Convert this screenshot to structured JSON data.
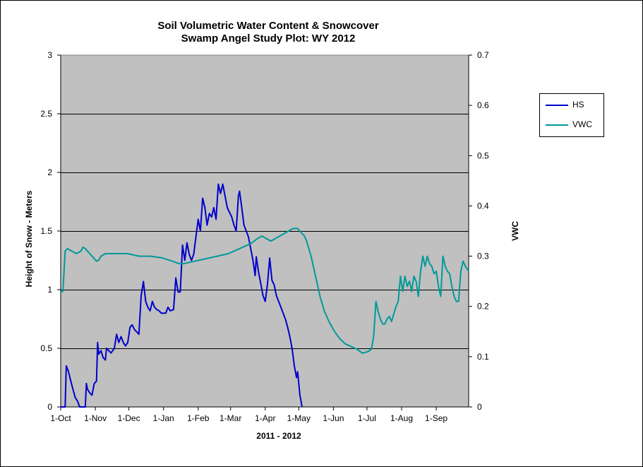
{
  "chart_data": {
    "type": "line",
    "title": "Soil Volumetric Water Content & Snowcover",
    "subtitle": "Swamp Angel Study Plot: WY 2012",
    "xlabel": "2011  - 2012",
    "ylabel": "Height of Snow - Meters",
    "y2label": "VWC",
    "x_tick_labels": [
      "1-Oct",
      "1-Nov",
      "1-Dec",
      "1-Jan",
      "1-Feb",
      "1-Mar",
      "1-Apr",
      "1-May",
      "1-Jun",
      "1-Jul",
      "1-Aug",
      "1-Sep"
    ],
    "x_tick_days": [
      0,
      31,
      61,
      92,
      123,
      152,
      183,
      213,
      244,
      274,
      305,
      336
    ],
    "xlim": [
      0,
      365
    ],
    "ylim": [
      0,
      3
    ],
    "y_ticks": [
      0,
      0.5,
      1,
      1.5,
      2,
      2.5,
      3
    ],
    "y_tick_labels": [
      "0",
      "0.5",
      "1",
      "1.5",
      "2",
      "2.5",
      "3"
    ],
    "y2lim": [
      0,
      0.7
    ],
    "y2_ticks": [
      0,
      0.1,
      0.2,
      0.3,
      0.4,
      0.5,
      0.6,
      0.7
    ],
    "y2_tick_labels": [
      "0",
      "0.1",
      "0.2",
      "0.3",
      "0.4",
      "0.5",
      "0.6",
      "0.7"
    ],
    "grid": "horizontal",
    "legend_position": "right",
    "plot_background": "#c0c0c0",
    "series": [
      {
        "name": "HS",
        "axis": "left",
        "color": "#0000cc",
        "points": [
          [
            0,
            0
          ],
          [
            4,
            0
          ],
          [
            5,
            0.35
          ],
          [
            7,
            0.3
          ],
          [
            9,
            0.22
          ],
          [
            11,
            0.15
          ],
          [
            13,
            0.08
          ],
          [
            15,
            0.05
          ],
          [
            17,
            0
          ],
          [
            22,
            0
          ],
          [
            23,
            0.2
          ],
          [
            24,
            0.15
          ],
          [
            26,
            0.12
          ],
          [
            28,
            0.1
          ],
          [
            30,
            0.2
          ],
          [
            32,
            0.22
          ],
          [
            33,
            0.55
          ],
          [
            34,
            0.45
          ],
          [
            36,
            0.48
          ],
          [
            38,
            0.42
          ],
          [
            40,
            0.4
          ],
          [
            41,
            0.5
          ],
          [
            43,
            0.48
          ],
          [
            45,
            0.46
          ],
          [
            48,
            0.5
          ],
          [
            50,
            0.62
          ],
          [
            52,
            0.55
          ],
          [
            54,
            0.6
          ],
          [
            56,
            0.55
          ],
          [
            58,
            0.52
          ],
          [
            60,
            0.55
          ],
          [
            62,
            0.68
          ],
          [
            64,
            0.7
          ],
          [
            66,
            0.66
          ],
          [
            68,
            0.64
          ],
          [
            70,
            0.62
          ],
          [
            72,
            0.95
          ],
          [
            74,
            1.07
          ],
          [
            76,
            0.9
          ],
          [
            78,
            0.85
          ],
          [
            80,
            0.82
          ],
          [
            82,
            0.9
          ],
          [
            84,
            0.85
          ],
          [
            86,
            0.83
          ],
          [
            88,
            0.82
          ],
          [
            90,
            0.8
          ],
          [
            92,
            0.8
          ],
          [
            94,
            0.8
          ],
          [
            96,
            0.85
          ],
          [
            98,
            0.82
          ],
          [
            101,
            0.83
          ],
          [
            103,
            1.1
          ],
          [
            105,
            0.98
          ],
          [
            107,
            0.98
          ],
          [
            109,
            1.38
          ],
          [
            111,
            1.25
          ],
          [
            113,
            1.4
          ],
          [
            115,
            1.3
          ],
          [
            117,
            1.25
          ],
          [
            119,
            1.3
          ],
          [
            121,
            1.45
          ],
          [
            123,
            1.6
          ],
          [
            125,
            1.5
          ],
          [
            127,
            1.78
          ],
          [
            129,
            1.7
          ],
          [
            131,
            1.55
          ],
          [
            133,
            1.65
          ],
          [
            135,
            1.62
          ],
          [
            137,
            1.7
          ],
          [
            139,
            1.6
          ],
          [
            141,
            1.9
          ],
          [
            143,
            1.82
          ],
          [
            145,
            1.9
          ],
          [
            147,
            1.8
          ],
          [
            149,
            1.7
          ],
          [
            151,
            1.66
          ],
          [
            153,
            1.62
          ],
          [
            155,
            1.55
          ],
          [
            157,
            1.5
          ],
          [
            159,
            1.8
          ],
          [
            160,
            1.84
          ],
          [
            162,
            1.7
          ],
          [
            164,
            1.55
          ],
          [
            166,
            1.5
          ],
          [
            168,
            1.45
          ],
          [
            170,
            1.35
          ],
          [
            172,
            1.25
          ],
          [
            174,
            1.12
          ],
          [
            175,
            1.28
          ],
          [
            177,
            1.15
          ],
          [
            179,
            1.05
          ],
          [
            181,
            0.95
          ],
          [
            183,
            0.9
          ],
          [
            185,
            1.05
          ],
          [
            187,
            1.27
          ],
          [
            189,
            1.08
          ],
          [
            191,
            1.04
          ],
          [
            193,
            0.95
          ],
          [
            195,
            0.9
          ],
          [
            197,
            0.85
          ],
          [
            199,
            0.8
          ],
          [
            201,
            0.75
          ],
          [
            203,
            0.68
          ],
          [
            205,
            0.6
          ],
          [
            207,
            0.5
          ],
          [
            209,
            0.35
          ],
          [
            211,
            0.25
          ],
          [
            212,
            0.3
          ],
          [
            214,
            0.1
          ],
          [
            216,
            0
          ]
        ]
      },
      {
        "name": "VWC",
        "axis": "right",
        "color": "#009999",
        "points": [
          [
            0,
            0.23
          ],
          [
            2,
            0.23
          ],
          [
            4,
            0.31
          ],
          [
            6,
            0.315
          ],
          [
            10,
            0.31
          ],
          [
            14,
            0.305
          ],
          [
            18,
            0.31
          ],
          [
            20,
            0.318
          ],
          [
            22,
            0.315
          ],
          [
            26,
            0.305
          ],
          [
            30,
            0.295
          ],
          [
            32,
            0.29
          ],
          [
            34,
            0.292
          ],
          [
            36,
            0.3
          ],
          [
            40,
            0.305
          ],
          [
            45,
            0.305
          ],
          [
            55,
            0.305
          ],
          [
            60,
            0.305
          ],
          [
            70,
            0.3
          ],
          [
            80,
            0.3
          ],
          [
            90,
            0.297
          ],
          [
            100,
            0.29
          ],
          [
            106,
            0.285
          ],
          [
            110,
            0.285
          ],
          [
            120,
            0.29
          ],
          [
            130,
            0.295
          ],
          [
            140,
            0.3
          ],
          [
            150,
            0.305
          ],
          [
            160,
            0.315
          ],
          [
            170,
            0.325
          ],
          [
            176,
            0.335
          ],
          [
            180,
            0.34
          ],
          [
            184,
            0.335
          ],
          [
            188,
            0.33
          ],
          [
            192,
            0.335
          ],
          [
            196,
            0.34
          ],
          [
            200,
            0.345
          ],
          [
            204,
            0.35
          ],
          [
            208,
            0.355
          ],
          [
            212,
            0.355
          ],
          [
            214,
            0.35
          ],
          [
            216,
            0.345
          ],
          [
            218,
            0.34
          ],
          [
            220,
            0.33
          ],
          [
            224,
            0.3
          ],
          [
            228,
            0.26
          ],
          [
            232,
            0.22
          ],
          [
            236,
            0.19
          ],
          [
            240,
            0.17
          ],
          [
            245,
            0.15
          ],
          [
            250,
            0.135
          ],
          [
            255,
            0.125
          ],
          [
            260,
            0.12
          ],
          [
            265,
            0.115
          ],
          [
            270,
            0.107
          ],
          [
            275,
            0.11
          ],
          [
            278,
            0.115
          ],
          [
            280,
            0.14
          ],
          [
            282,
            0.21
          ],
          [
            284,
            0.19
          ],
          [
            286,
            0.175
          ],
          [
            288,
            0.165
          ],
          [
            290,
            0.165
          ],
          [
            292,
            0.175
          ],
          [
            294,
            0.18
          ],
          [
            296,
            0.17
          ],
          [
            298,
            0.185
          ],
          [
            300,
            0.2
          ],
          [
            302,
            0.21
          ],
          [
            304,
            0.26
          ],
          [
            306,
            0.23
          ],
          [
            308,
            0.26
          ],
          [
            310,
            0.24
          ],
          [
            312,
            0.25
          ],
          [
            314,
            0.23
          ],
          [
            316,
            0.26
          ],
          [
            318,
            0.25
          ],
          [
            320,
            0.22
          ],
          [
            322,
            0.27
          ],
          [
            324,
            0.3
          ],
          [
            326,
            0.28
          ],
          [
            328,
            0.3
          ],
          [
            330,
            0.285
          ],
          [
            332,
            0.28
          ],
          [
            334,
            0.265
          ],
          [
            336,
            0.27
          ],
          [
            338,
            0.24
          ],
          [
            340,
            0.22
          ],
          [
            342,
            0.3
          ],
          [
            344,
            0.28
          ],
          [
            346,
            0.27
          ],
          [
            348,
            0.265
          ],
          [
            350,
            0.24
          ],
          [
            352,
            0.22
          ],
          [
            354,
            0.21
          ],
          [
            356,
            0.21
          ],
          [
            358,
            0.27
          ],
          [
            360,
            0.29
          ],
          [
            362,
            0.28
          ],
          [
            365,
            0.27
          ]
        ]
      }
    ]
  }
}
